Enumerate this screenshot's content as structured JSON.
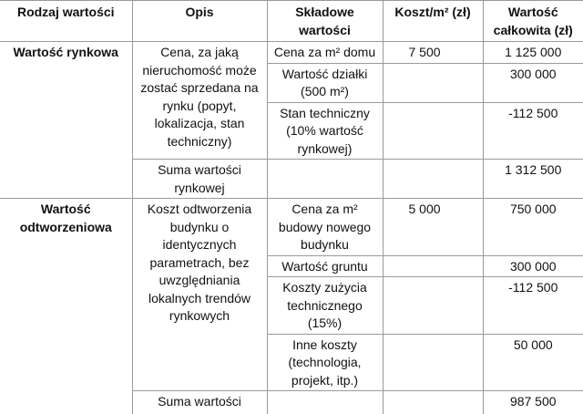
{
  "table": {
    "header": [
      "Rodzaj wartości",
      "Opis",
      "Składowe wartości",
      "Koszt/m² (zł)",
      "Wartość całkowita (zł)"
    ],
    "groups": [
      {
        "label": "Wartość rynkowa",
        "description": "Cena, za jaką nieruchomość może zostać sprzedana na rynku (popyt, lokalizacja, stan techniczny)",
        "components": [
          {
            "name": "Cena za m² domu",
            "cost_per_m2": "7 500",
            "total": "1 125 000"
          },
          {
            "name": "Wartość działki (500 m²)",
            "total": "300 000"
          },
          {
            "name": "Stan techniczny (10% wartość rynkowej)",
            "total": "-112 500"
          }
        ],
        "sum_label": "Suma wartości rynkowej",
        "sum_total": "1 312 500"
      },
      {
        "label": "Wartość odtworzeniowa",
        "description": "Koszt odtworzenia budynku o identycznych parametrach, bez uwzględniania lokalnych trendów rynkowych",
        "components": [
          {
            "name": "Cena za m² budowy nowego budynku",
            "cost_per_m2": "5 000",
            "total": "750 000"
          },
          {
            "name": "Wartość gruntu",
            "total": "300 000"
          },
          {
            "name": "Koszty zużycia technicznego (15%)",
            "total": "-112 500"
          },
          {
            "name": "Inne koszty (technologia, projekt, itp.)",
            "total": "50 000"
          }
        ],
        "sum_label": "Suma wartości odtworzeniowej",
        "sum_total": "987 500"
      }
    ]
  }
}
